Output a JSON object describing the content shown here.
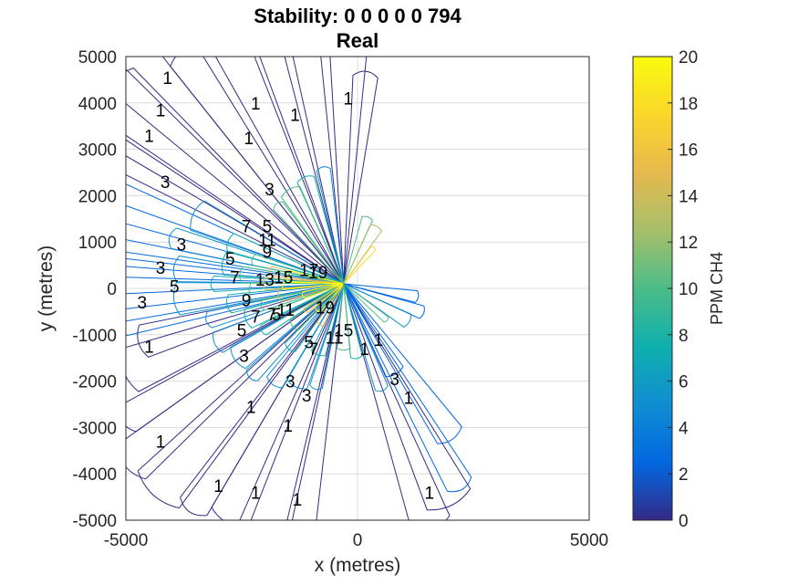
{
  "figure": {
    "title_line1": "Stability: 0     0     0     0     0  794",
    "title_line2": "Real"
  },
  "colorbar": {
    "label": "PPM CH4",
    "ticks": [
      "0",
      "2",
      "4",
      "6",
      "8",
      "10",
      "12",
      "14",
      "16",
      "18",
      "20"
    ],
    "colors": [
      "#352a87",
      "#0268e1",
      "#108ed2",
      "#0fafae",
      "#4bbc87",
      "#a7bf6a",
      "#e7b94e",
      "#fbd72b",
      "#f9fb0e"
    ]
  },
  "chart_data": {
    "type": "contour",
    "title": "Stability: 0     0     0     0     0  794",
    "subtitle": "Real",
    "xlabel": "x (metres)",
    "ylabel": "y (metres)",
    "xlim": [
      -5000,
      5000
    ],
    "ylim": [
      -5000,
      5000
    ],
    "xticks": [
      "-5000",
      "0",
      "5000"
    ],
    "yticks": [
      "5000",
      "4000",
      "3000",
      "2000",
      "1000",
      "0",
      "-1000",
      "-2000",
      "-3000",
      "-4000",
      "-5000"
    ],
    "grid": true,
    "colorbar_range": [
      0,
      20
    ],
    "colorbar_label": "PPM CH4",
    "levels": [
      1,
      3,
      5,
      7,
      9,
      11,
      13,
      15,
      17,
      19
    ],
    "contour_labels": [
      {
        "text": "1",
        "x": -4100,
        "y": 4550
      },
      {
        "text": "1",
        "x": -4250,
        "y": 3850
      },
      {
        "text": "1",
        "x": -4500,
        "y": 3300
      },
      {
        "text": "1",
        "x": -2200,
        "y": 4000
      },
      {
        "text": "1",
        "x": -1350,
        "y": 3750
      },
      {
        "text": "1",
        "x": -2350,
        "y": 3250
      },
      {
        "text": "1",
        "x": -200,
        "y": 4100
      },
      {
        "text": "3",
        "x": -4150,
        "y": 2300
      },
      {
        "text": "3",
        "x": -1900,
        "y": 2150
      },
      {
        "text": "3",
        "x": -3800,
        "y": 950
      },
      {
        "text": "3",
        "x": -4250,
        "y": 450
      },
      {
        "text": "3",
        "x": -4650,
        "y": -300
      },
      {
        "text": "3",
        "x": -2450,
        "y": -1450
      },
      {
        "text": "3",
        "x": -1450,
        "y": -2000
      },
      {
        "text": "3",
        "x": -1100,
        "y": -2300
      },
      {
        "text": "3",
        "x": 800,
        "y": -1950
      },
      {
        "text": "5",
        "x": -1950,
        "y": 1350
      },
      {
        "text": "5",
        "x": -2750,
        "y": 650
      },
      {
        "text": "5",
        "x": -3950,
        "y": 50
      },
      {
        "text": "5",
        "x": -2500,
        "y": -900
      },
      {
        "text": "5",
        "x": -1750,
        "y": -550
      },
      {
        "text": "5",
        "x": -1050,
        "y": -1150
      },
      {
        "text": "7",
        "x": -2400,
        "y": 1350
      },
      {
        "text": "7",
        "x": -2650,
        "y": 250
      },
      {
        "text": "7",
        "x": -2200,
        "y": -600
      },
      {
        "text": "7",
        "x": -1850,
        "y": -550
      },
      {
        "text": "7",
        "x": -950,
        "y": -1300
      },
      {
        "text": "9",
        "x": -1950,
        "y": 800
      },
      {
        "text": "9",
        "x": -2400,
        "y": -250
      },
      {
        "text": "11",
        "x": -1950,
        "y": 1050
      },
      {
        "text": "11",
        "x": -1550,
        "y": -450
      },
      {
        "text": "11",
        "x": -500,
        "y": -1050
      },
      {
        "text": "13",
        "x": -2000,
        "y": 200
      },
      {
        "text": "15",
        "x": -1600,
        "y": 250
      },
      {
        "text": "15",
        "x": -300,
        "y": -900
      },
      {
        "text": "17",
        "x": -1050,
        "y": 400
      },
      {
        "text": "19",
        "x": -850,
        "y": 350
      },
      {
        "text": "19",
        "x": -700,
        "y": -400
      },
      {
        "text": "1",
        "x": 150,
        "y": -1300
      },
      {
        "text": "1",
        "x": 450,
        "y": -1100
      },
      {
        "text": "1",
        "x": 1100,
        "y": -2350
      },
      {
        "text": "1",
        "x": 1550,
        "y": -4400
      },
      {
        "text": "1",
        "x": -4500,
        "y": -1250
      },
      {
        "text": "1",
        "x": -4250,
        "y": -3300
      },
      {
        "text": "1",
        "x": -2300,
        "y": -2550
      },
      {
        "text": "1",
        "x": -1500,
        "y": -2950
      },
      {
        "text": "1",
        "x": -3000,
        "y": -4250
      },
      {
        "text": "1",
        "x": -2200,
        "y": -4400
      },
      {
        "text": "1",
        "x": -1300,
        "y": -4550
      }
    ]
  }
}
